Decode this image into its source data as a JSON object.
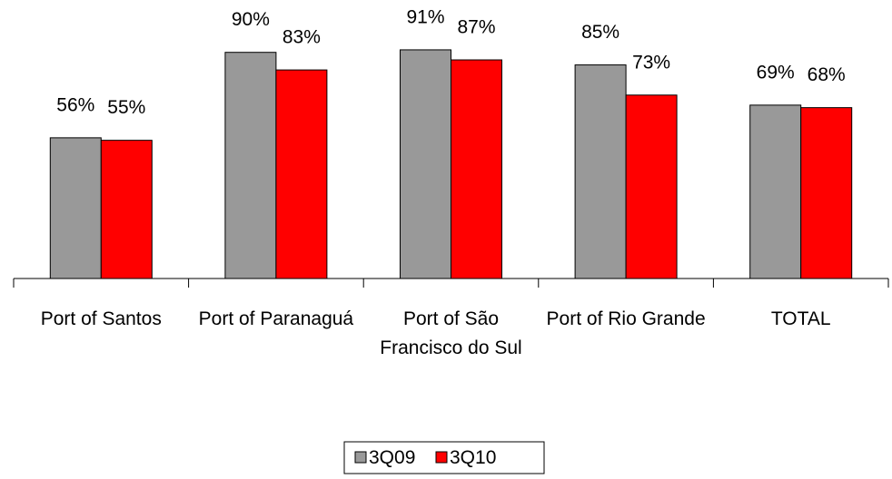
{
  "chart_data": {
    "type": "bar",
    "categories": [
      "Port of Santos",
      "Port of Paranaguá",
      "Port of São Francisco do Sul",
      "Port of Rio Grande",
      "TOTAL"
    ],
    "series": [
      {
        "name": "3Q09",
        "color": "#999999",
        "values": [
          56,
          90,
          91,
          85,
          69
        ],
        "value_labels": [
          "56%",
          "90%",
          "91%",
          "85%",
          "69%"
        ]
      },
      {
        "name": "3Q10",
        "color": "#ff0000",
        "values": [
          55,
          83,
          87,
          73,
          68
        ],
        "value_labels": [
          "55%",
          "83%",
          "87%",
          "73%",
          "68%"
        ]
      }
    ],
    "ylim": [
      0,
      100
    ],
    "legend": "bottom"
  }
}
